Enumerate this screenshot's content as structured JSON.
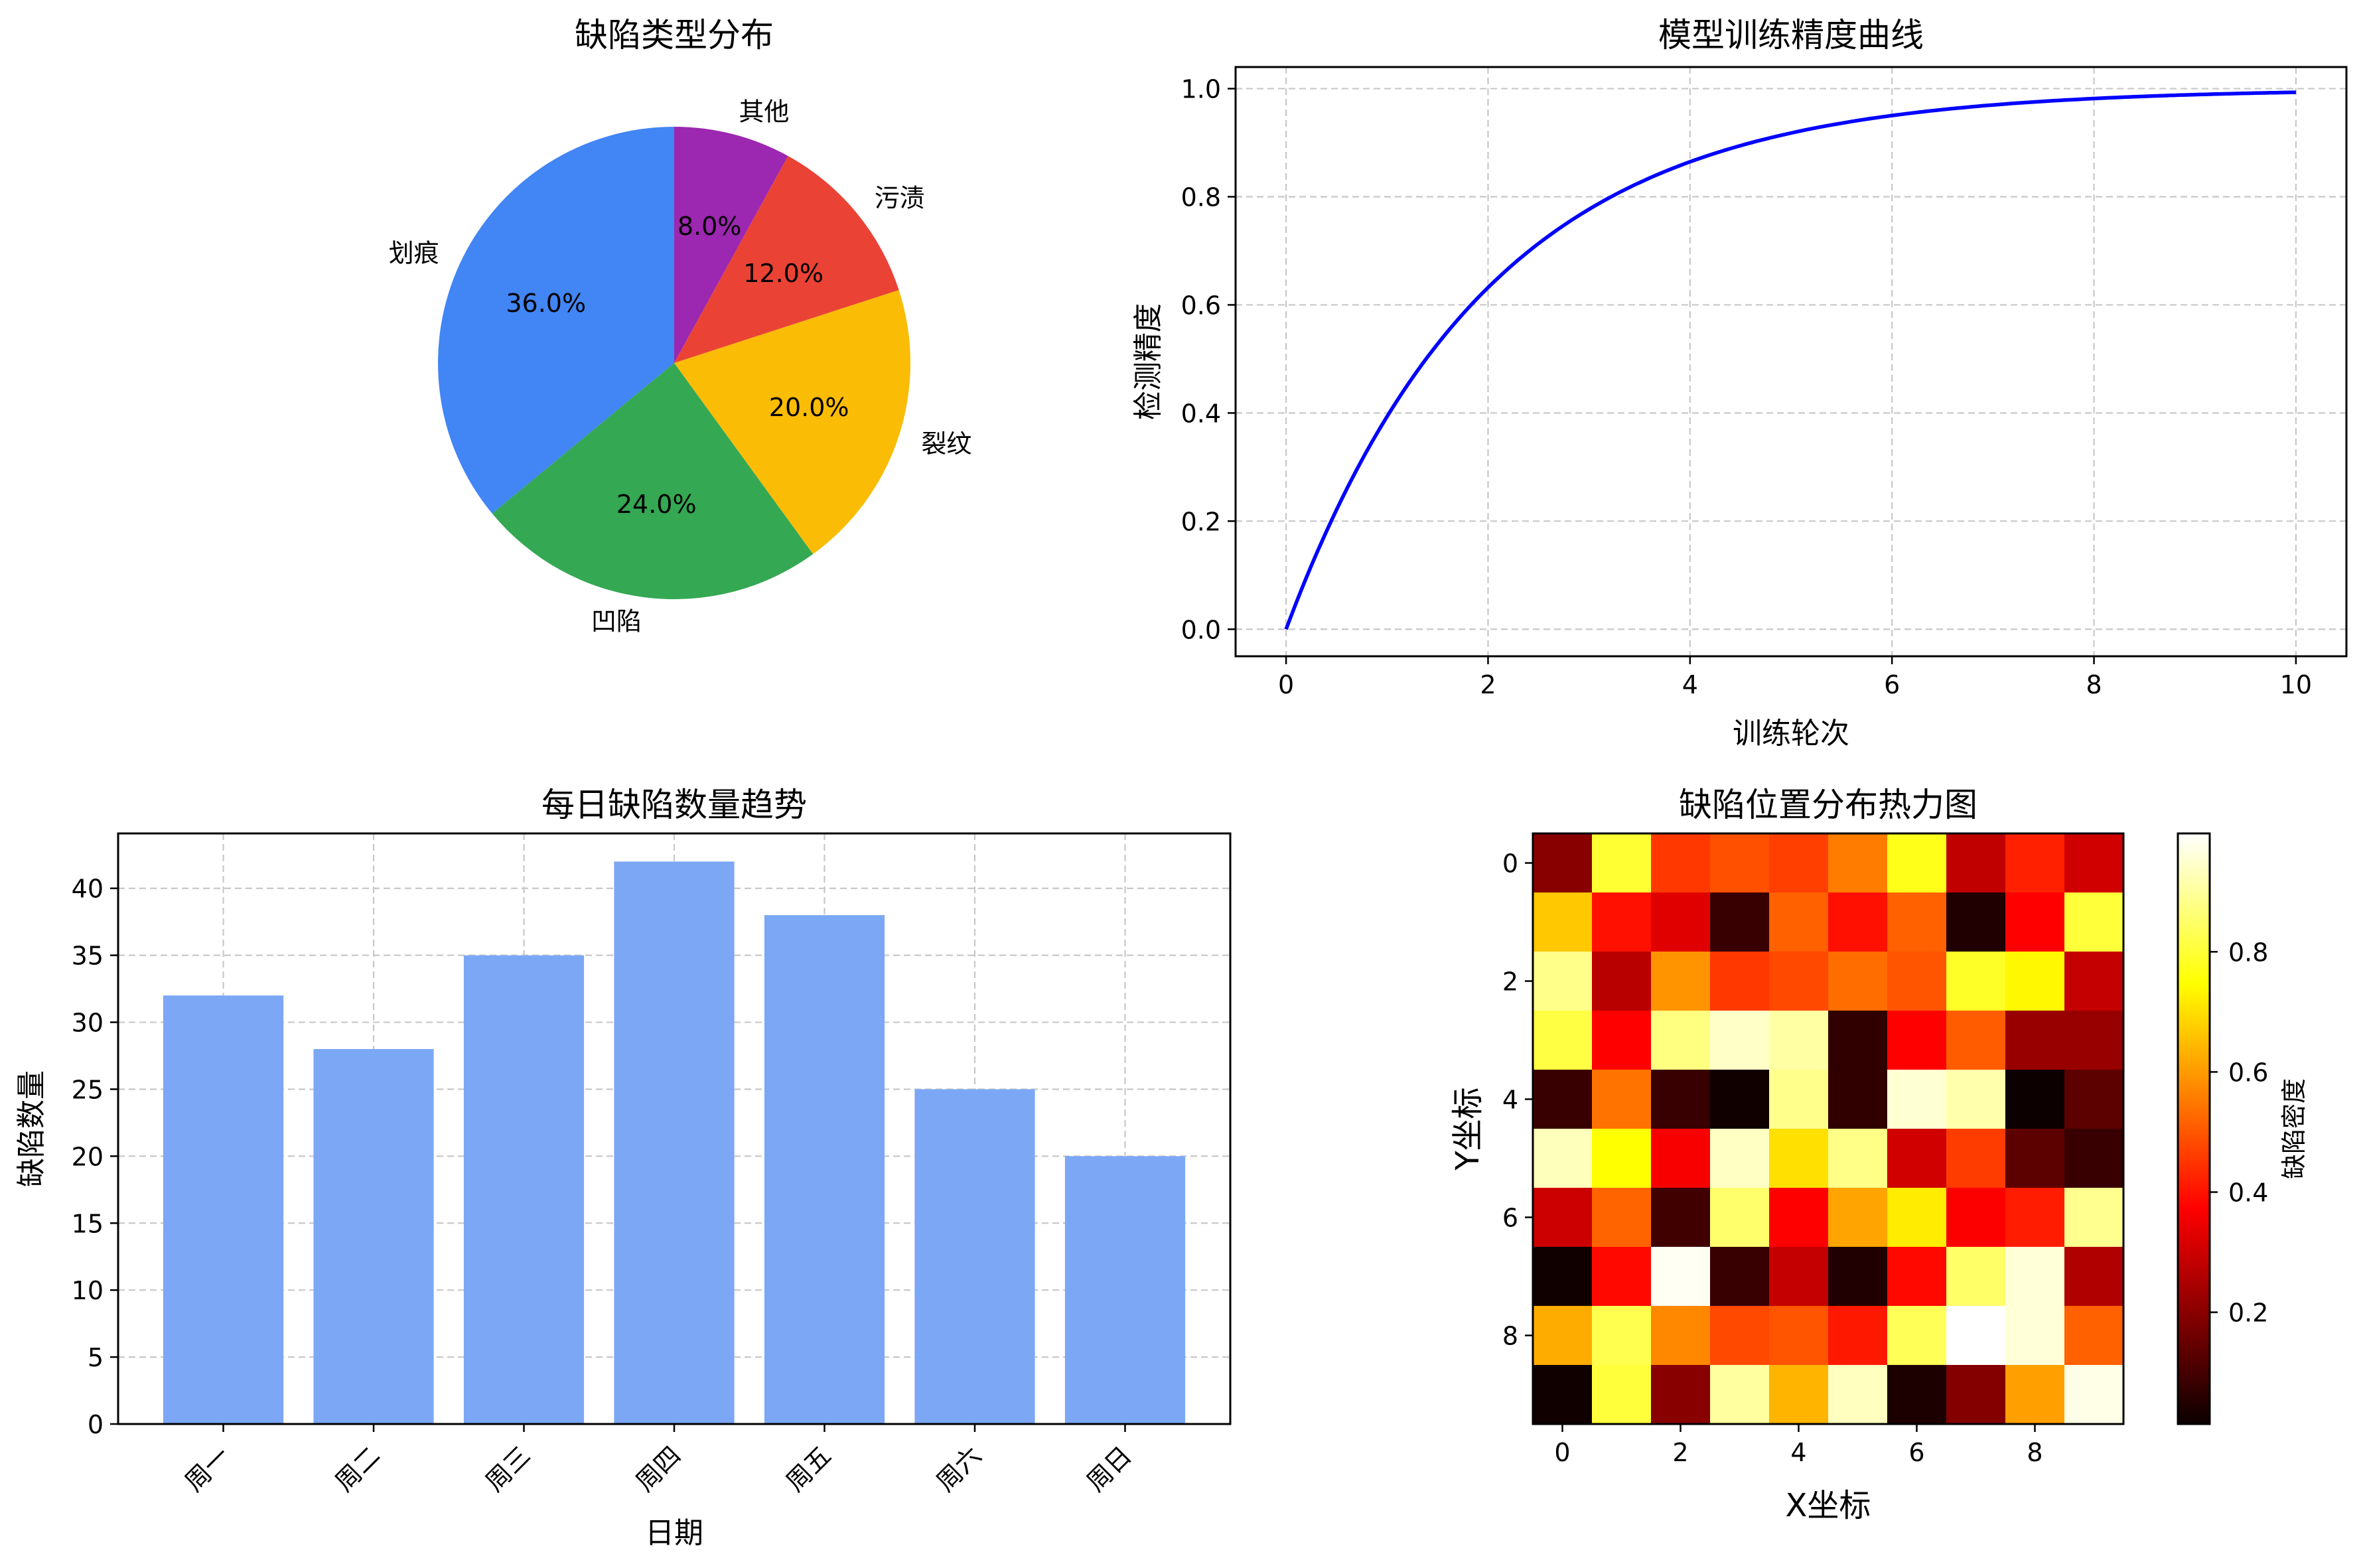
{
  "chart_data": [
    {
      "type": "pie",
      "title": "缺陷类型分布",
      "categories": [
        "划痕",
        "凹陷",
        "裂纹",
        "污渍",
        "其他"
      ],
      "values": [
        36,
        24,
        20,
        12,
        8
      ],
      "labels_pct": [
        "36.0%",
        "24.0%",
        "20.0%",
        "12.0%",
        "8.0%"
      ],
      "colors": [
        "#4285F4",
        "#34A853",
        "#FBBC05",
        "#EA4335",
        "#9C27B0"
      ],
      "startangle": 90,
      "direction": "counterclockwise"
    },
    {
      "type": "line",
      "title": "模型训练精度曲线",
      "xlabel": "训练轮次",
      "ylabel": "检测精度",
      "function": "1 - exp(-x/2)",
      "x": [
        0,
        0.5,
        1,
        1.5,
        2,
        2.5,
        3,
        3.5,
        4,
        4.5,
        5,
        5.5,
        6,
        6.5,
        7,
        7.5,
        8,
        8.5,
        9,
        9.5,
        10
      ],
      "y": [
        0.0,
        0.221,
        0.393,
        0.528,
        0.632,
        0.713,
        0.777,
        0.826,
        0.865,
        0.895,
        0.918,
        0.936,
        0.95,
        0.961,
        0.97,
        0.976,
        0.982,
        0.986,
        0.989,
        0.991,
        0.993
      ],
      "xticks": [
        "0",
        "2",
        "4",
        "6",
        "8",
        "10"
      ],
      "yticks": [
        "0.0",
        "0.2",
        "0.4",
        "0.6",
        "0.8",
        "1.0"
      ],
      "xlim": [
        -0.5,
        10.5
      ],
      "ylim": [
        -0.05,
        1.04
      ],
      "color": "#0000FF",
      "grid": true
    },
    {
      "type": "bar",
      "title": "每日缺陷数量趋势",
      "xlabel": "日期",
      "ylabel": "缺陷数量",
      "categories": [
        "周一",
        "周二",
        "周三",
        "周四",
        "周五",
        "周六",
        "周日"
      ],
      "values": [
        32,
        28,
        35,
        42,
        38,
        25,
        20
      ],
      "yticks": [
        "0",
        "5",
        "10",
        "15",
        "20",
        "25",
        "30",
        "35",
        "40"
      ],
      "ylim": [
        0,
        44.1
      ],
      "color": "#7BA7F5",
      "xtick_rotation": 45,
      "grid": true
    },
    {
      "type": "heatmap",
      "title": "缺陷位置分布热力图",
      "xlabel": "X坐标",
      "ylabel": "Y坐标",
      "colormap": "hot",
      "colorbar_label": "缺陷密度",
      "colorbar_ticks": [
        "0.2",
        "0.4",
        "0.6",
        "0.8"
      ],
      "vmin": 0.014,
      "vmax": 0.997,
      "xticks": [
        "0",
        "2",
        "4",
        "6",
        "8"
      ],
      "yticks": [
        "0",
        "2",
        "4",
        "6",
        "8"
      ],
      "values": [
        [
          0.2,
          0.82,
          0.44,
          0.48,
          0.45,
          0.54,
          0.8,
          0.28,
          0.41,
          0.31
        ],
        [
          0.68,
          0.39,
          0.33,
          0.09,
          0.51,
          0.39,
          0.51,
          0.05,
          0.38,
          0.83
        ],
        [
          0.91,
          0.27,
          0.59,
          0.44,
          0.46,
          0.53,
          0.48,
          0.8,
          0.74,
          0.29
        ],
        [
          0.84,
          0.37,
          0.89,
          0.96,
          0.93,
          0.08,
          0.37,
          0.5,
          0.22,
          0.22
        ],
        [
          0.09,
          0.53,
          0.09,
          0.03,
          0.91,
          0.08,
          0.97,
          0.94,
          0.02,
          0.14
        ],
        [
          0.95,
          0.74,
          0.36,
          0.96,
          0.68,
          0.9,
          0.31,
          0.45,
          0.14,
          0.09
        ],
        [
          0.3,
          0.51,
          0.1,
          0.86,
          0.37,
          0.61,
          0.71,
          0.37,
          0.41,
          0.91
        ],
        [
          0.03,
          0.38,
          0.99,
          0.09,
          0.29,
          0.05,
          0.38,
          0.86,
          0.97,
          0.26
        ],
        [
          0.62,
          0.85,
          0.56,
          0.46,
          0.48,
          0.4,
          0.85,
          1.0,
          0.97,
          0.51
        ],
        [
          0.03,
          0.83,
          0.2,
          0.92,
          0.63,
          0.95,
          0.05,
          0.19,
          0.6,
          0.98
        ]
      ],
      "colors": [
        [
          "#880000",
          "#ffff33",
          "#ff3800",
          "#ff5000",
          "#ff3f00",
          "#ff7c00",
          "#ffff1a",
          "#c00000",
          "#ff2000",
          "#d00000"
        ],
        [
          "#ffc800",
          "#ff1000",
          "#e00000",
          "#380000",
          "#ff6000",
          "#ff1000",
          "#ff6000",
          "#200000",
          "#ff0000",
          "#ffff3a"
        ],
        [
          "#ffff8a",
          "#b80000",
          "#ff9400",
          "#ff3800",
          "#ff4800",
          "#ff6c00",
          "#ff5400",
          "#ffff28",
          "#fff800",
          "#c40000"
        ],
        [
          "#ffff44",
          "#ff0000",
          "#ffff80",
          "#ffffc8",
          "#ffffa4",
          "#300000",
          "#ff0000",
          "#ff5c00",
          "#980000",
          "#980000"
        ],
        [
          "#380000",
          "#ff7400",
          "#380000",
          "#100000",
          "#ffff8c",
          "#300000",
          "#ffffd4",
          "#ffffac",
          "#0c0000",
          "#5c0000"
        ],
        [
          "#ffffbc",
          "#ffff00",
          "#f80000",
          "#ffffc4",
          "#ffe000",
          "#ffff88",
          "#d00000",
          "#ff3c00",
          "#5c0000",
          "#380000"
        ],
        [
          "#cc0000",
          "#ff6400",
          "#400000",
          "#ffff6c",
          "#ff0000",
          "#ffa400",
          "#ffec00",
          "#fc0000",
          "#ff1c00",
          "#ffff90"
        ],
        [
          "#100000",
          "#ff0800",
          "#fffff4",
          "#380000",
          "#c40000",
          "#200000",
          "#ff0800",
          "#ffff68",
          "#ffffd8",
          "#b00000"
        ],
        [
          "#ffac00",
          "#ffff50",
          "#ff8800",
          "#ff4800",
          "#ff5400",
          "#ff1800",
          "#ffff58",
          "#ffffff",
          "#ffffd8",
          "#ff6000"
        ],
        [
          "#100000",
          "#ffff3c",
          "#880000",
          "#ffffa0",
          "#ffb400",
          "#ffffc0",
          "#1c0000",
          "#840000",
          "#ffa000",
          "#ffffe8"
        ]
      ]
    }
  ]
}
